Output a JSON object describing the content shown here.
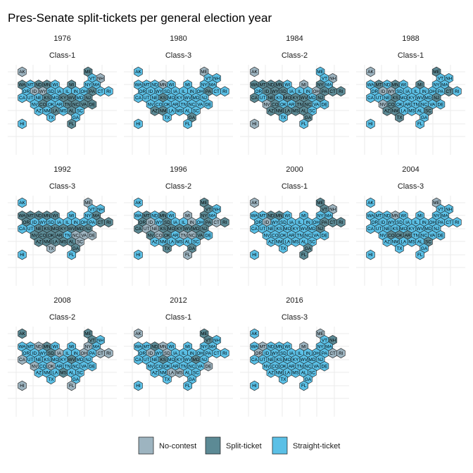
{
  "chart_data": {
    "type": "hex-map",
    "title": "Pres-Senate split-tickets per general election year",
    "categories": [
      "No-contest",
      "Split-ticket",
      "Straight-ticket"
    ],
    "colors": {
      "No-contest": "#9db4c0",
      "Split-ticket": "#5c8a95",
      "Straight-ticket": "#5bc0e6"
    },
    "code_legend": {
      "N": "No-contest",
      "S": "Split-ticket",
      "T": "Straight-ticket"
    },
    "states": [
      "AK",
      "ME",
      "VT",
      "NH",
      "WA",
      "MT",
      "ND",
      "MN",
      "WI",
      "MI",
      "NY",
      "MA",
      "OR",
      "ID",
      "WY",
      "SD",
      "IA",
      "IL",
      "IN",
      "OH",
      "PA",
      "CT",
      "RI",
      "CA",
      "UT",
      "NE",
      "KS",
      "MO",
      "KY",
      "WV",
      "MD",
      "NJ",
      "NV",
      "CO",
      "OK",
      "AR",
      "TN",
      "NC",
      "VA",
      "DE",
      "AZ",
      "NM",
      "LA",
      "MS",
      "AL",
      "SC",
      "TX",
      "GA",
      "HI",
      "FL"
    ],
    "panels": [
      {
        "year": "1976",
        "class": "Class-1",
        "codes": "NSTNSTSSTSTTTNNTTTTTSTTTTTSTSSTSTSTTSSSSTTSTSTTTTS"
      },
      {
        "year": "1980",
        "class": "Class-3",
        "codes": "TNTTTTTNTTTTTTTTTTTTSTTTTTSTTTTTTTTTTTTTSSTTTTTSTT"
      },
      {
        "year": "1984",
        "class": "Class-2",
        "codes": "NTTNSSSSTNSTTSSSTTTNSSSSTSTSSSTSNSTTSSTTSSSSSTTSNT"
      },
      {
        "year": "1988",
        "class": "Class-1",
        "codes": "NSTTTSTSTSTTTNNTTTTTTSTTTTSTTTTSNSTTTTTTSSTTTSSTTT"
      },
      {
        "year": "1992",
        "class": "Class-3",
        "codes": "TNTTSSSSSTTSSTTTTTTTTSSTTSSSSSSSSSSSTNNNSSSSSNNSTT"
      },
      {
        "year": "1996",
        "class": "Class-2",
        "codes": "TSSTTSTSTNSTSNTSTTNTSNSSNNSSSSSSSNSTNNSTTTTTTTSSTN"
      },
      {
        "year": "2000",
        "class": "Class-1",
        "codes": "NSSNTTSSTTTTTNTTTTTTSSSTTTTTTTTSTTTTTTTTTTTTTTTSTS"
      },
      {
        "year": "2004",
        "class": "Class-3",
        "codes": "TNTTTTTNTTTTTTTTTTTTTTTTTTTTTTTTTSSSTTTTTTTTTSTTTT"
      },
      {
        "year": "2008",
        "class": "Class-2",
        "codes": "SSSTTTNSTTNTTTTSNTTNTNNNTTTTTSTTNTNTTTTTTTTSTTTTNN"
      },
      {
        "year": "2012",
        "class": "Class-1",
        "codes": "NSSTTTSNTTTTTNTNTTTTTTTTTTSTTTSTTTTTTTTNTTNNTTTTTT"
      },
      {
        "year": "2016",
        "class": "Class-3",
        "codes": "TNTSTNTTTNTTNTTTTTTTTNNTTTTTTTTTTTTTTTTTTTTTTTTTTT"
      }
    ]
  }
}
